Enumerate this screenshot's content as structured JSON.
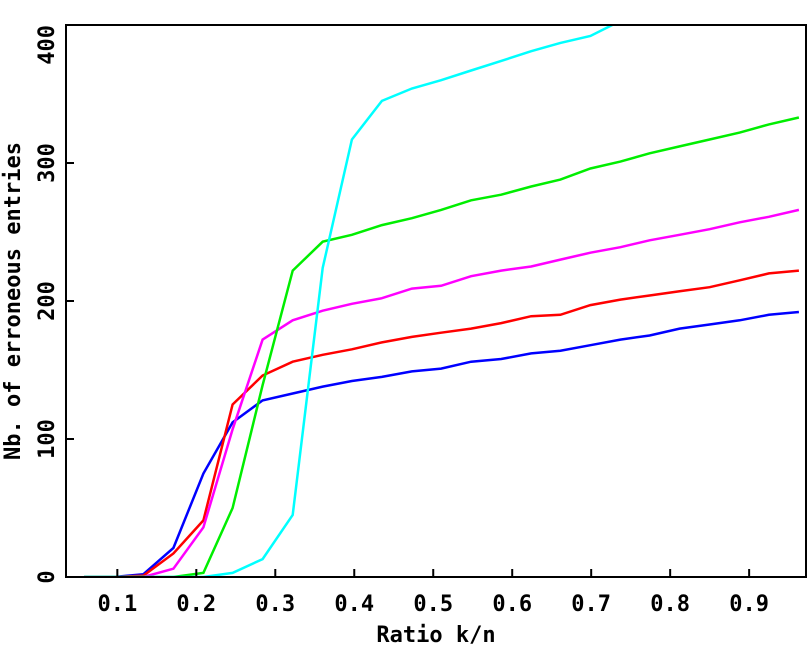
{
  "chart_data": {
    "type": "line",
    "xlabel": "Ratio k/n",
    "ylabel": "Nb. of erroneous entries",
    "x": [
      0.058,
      0.096,
      0.133,
      0.171,
      0.209,
      0.246,
      0.284,
      0.322,
      0.36,
      0.397,
      0.435,
      0.473,
      0.51,
      0.548,
      0.586,
      0.624,
      0.661,
      0.699,
      0.737,
      0.774,
      0.812,
      0.85,
      0.888,
      0.925,
      0.963
    ],
    "xlim": [
      0.035,
      0.972
    ],
    "ylim": [
      0,
      400
    ],
    "xticks": [
      0.1,
      0.2,
      0.3,
      0.4,
      0.5,
      0.6,
      0.7,
      0.8,
      0.9
    ],
    "yticks": [
      0,
      100,
      200,
      300,
      400
    ],
    "series": [
      {
        "color": "#0000ff",
        "values": [
          0,
          0,
          2,
          21,
          75,
          112,
          128,
          133,
          138,
          142,
          145,
          149,
          151,
          156,
          158,
          162,
          164,
          168,
          172,
          175,
          180,
          183,
          186,
          190,
          192
        ]
      },
      {
        "color": "#ff0000",
        "values": [
          0,
          0,
          1,
          17,
          41,
          125,
          146,
          156,
          161,
          165,
          170,
          174,
          177,
          180,
          184,
          189,
          190,
          197,
          201,
          204,
          207,
          210,
          215,
          220,
          222
        ]
      },
      {
        "color": "#ff00ff",
        "values": [
          0,
          0,
          0,
          6,
          36,
          107,
          172,
          186,
          193,
          198,
          202,
          209,
          211,
          218,
          222,
          225,
          230,
          235,
          239,
          244,
          248,
          252,
          257,
          261,
          266
        ]
      },
      {
        "color": "#00ee00",
        "values": [
          0,
          0,
          0,
          0,
          3,
          50,
          139,
          222,
          243,
          248,
          255,
          260,
          266,
          273,
          277,
          283,
          288,
          296,
          301,
          307,
          312,
          317,
          322,
          328,
          333
        ]
      },
      {
        "color": "#00ffff",
        "values": [
          0,
          0,
          0,
          0,
          0,
          3,
          13,
          45,
          224,
          317,
          345,
          354,
          360,
          367,
          374,
          381,
          387,
          392,
          403,
          null,
          null,
          null,
          null,
          null,
          null
        ]
      }
    ]
  }
}
